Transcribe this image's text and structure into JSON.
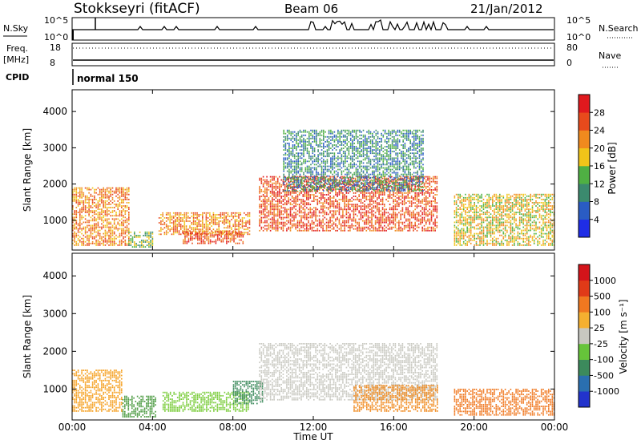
{
  "header": {
    "station": "Stokkseyri (fitACF)",
    "beam": "Beam 06",
    "date": "21/Jan/2012"
  },
  "status_panels": {
    "nsky_label": "N.Sky",
    "nsky_ticks": [
      "10^5",
      "10^0"
    ],
    "nsearch_label": "N.Search",
    "nsearch_ticks": [
      "10^5",
      "10^0"
    ],
    "freq_label": "Freq.",
    "freq_unit": "[MHz]",
    "freq_ticks": [
      "18",
      "8"
    ],
    "nave_label": "Nave",
    "nave_ticks": [
      "80",
      "0"
    ],
    "cpid_label": "CPID",
    "cpid_value": "normal 150"
  },
  "chart_data": [
    {
      "type": "heatmap",
      "name": "power",
      "ylabel": "Slant Range [km]",
      "ylim": [
        180,
        4600
      ],
      "yticks": [
        "1000",
        "2000",
        "3000",
        "4000"
      ],
      "colorbar": {
        "label": "Power [dB]",
        "ticks": [
          "4",
          "8",
          "12",
          "16",
          "20",
          "24",
          "28"
        ],
        "colors": [
          "#1f2de6",
          "#2a5cc4",
          "#3b8a6e",
          "#4fb043",
          "#f0c419",
          "#f08a1e",
          "#e84a1c",
          "#e0191e"
        ]
      },
      "echo_regions": [
        {
          "t0": 0.0,
          "t1": 2.8,
          "r0": 300,
          "r1": 1900,
          "level": 5
        },
        {
          "t0": 2.8,
          "t1": 4.0,
          "r0": 250,
          "r1": 700,
          "level": 3
        },
        {
          "t0": 4.3,
          "t1": 8.8,
          "r0": 600,
          "r1": 1200,
          "level": 5
        },
        {
          "t0": 5.5,
          "t1": 8.5,
          "r0": 350,
          "r1": 700,
          "level": 6
        },
        {
          "t0": 9.3,
          "t1": 18.2,
          "r0": 700,
          "r1": 2200,
          "level": 6
        },
        {
          "t0": 10.5,
          "t1": 17.5,
          "r0": 1800,
          "r1": 3500,
          "level": 2
        },
        {
          "t0": 19.0,
          "t1": 24.0,
          "r0": 300,
          "r1": 1700,
          "level": 4
        }
      ]
    },
    {
      "type": "heatmap",
      "name": "velocity",
      "ylabel": "Slant Range [km]",
      "ylim": [
        180,
        4600
      ],
      "yticks": [
        "1000",
        "2000",
        "3000",
        "4000"
      ],
      "xlabel": "Time UT",
      "xticks": [
        "00:00",
        "04:00",
        "08:00",
        "12:00",
        "16:00",
        "20:00",
        "00:00"
      ],
      "colorbar": {
        "label": "Velocity [m s⁻¹]",
        "ticks": [
          "1000",
          "500",
          "100",
          "25",
          "-25",
          "-100",
          "-500",
          "-1000"
        ],
        "colors": [
          "#2233cc",
          "#2a6fb0",
          "#3c8a5c",
          "#66c43a",
          "#c8c8c0",
          "#f5b030",
          "#f07820",
          "#e03a18",
          "#d4141a"
        ]
      },
      "echo_regions": [
        {
          "t0": 0.0,
          "t1": 2.5,
          "r0": 400,
          "r1": 1500,
          "color": "#f5a020"
        },
        {
          "t0": 2.5,
          "t1": 4.2,
          "r0": 250,
          "r1": 800,
          "color": "#4a9a40"
        },
        {
          "t0": 4.5,
          "t1": 8.8,
          "r0": 400,
          "r1": 900,
          "color": "#7acc3a"
        },
        {
          "t0": 8.0,
          "t1": 9.5,
          "r0": 600,
          "r1": 1200,
          "color": "#3c8a5c"
        },
        {
          "t0": 9.3,
          "t1": 18.2,
          "r0": 700,
          "r1": 2200,
          "color": "#c8c8c0"
        },
        {
          "t0": 14.0,
          "t1": 18.2,
          "r0": 400,
          "r1": 1100,
          "color": "#f08a1e"
        },
        {
          "t0": 19.0,
          "t1": 24.0,
          "r0": 300,
          "r1": 1000,
          "color": "#f07820"
        }
      ]
    }
  ]
}
